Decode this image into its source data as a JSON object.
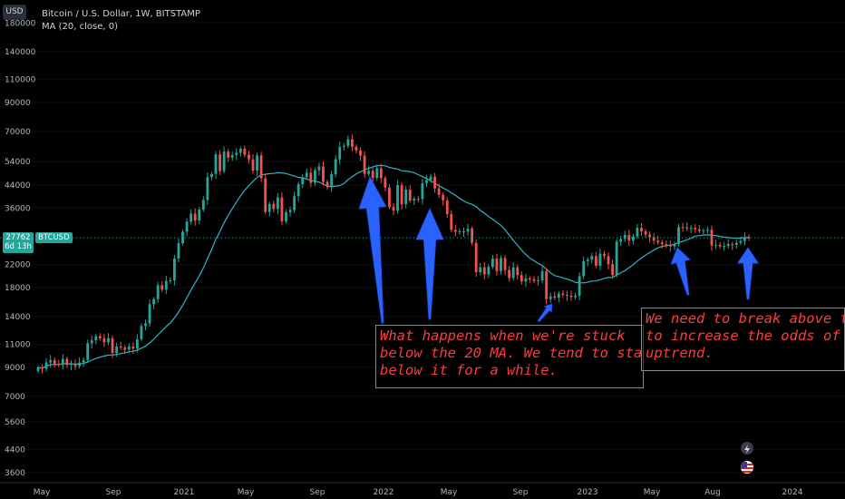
{
  "header": {
    "title": "Bitcoin / U.S. Dollar, 1W, BITSTAMP",
    "indicator": "MA (20, close, 0)",
    "currency_button": "USD"
  },
  "price_tag": {
    "value": "27762",
    "countdown": "6d 13h",
    "symbol": "BTCUSD",
    "color": "#26a69a"
  },
  "colors": {
    "up": "#26a69a",
    "down": "#ef5350",
    "ma": "#2fb6c8",
    "arrow": "#2962ff",
    "note_text": "#ff3b3b"
  },
  "annotations": [
    {
      "id": "note1",
      "text": "What happens when we're stuck\nbelow the 20 MA. We tend to stay\nbelow it for a while."
    },
    {
      "id": "note2",
      "text": "We need to break above th\nto increase the odds of an\nuptrend."
    }
  ],
  "icons": [
    "lightning-icon",
    "us-flag-icon"
  ],
  "chart_data": {
    "type": "candlestick",
    "title": "Bitcoin / U.S. Dollar, 1W, BITSTAMP",
    "scale": "log",
    "ylim": [
      3300,
      200000
    ],
    "y_ticks": [
      3600,
      4400,
      5600,
      7000,
      9000,
      11000,
      14000,
      18000,
      22000,
      28000,
      36000,
      44000,
      54000,
      70000,
      90000,
      110000,
      140000,
      180000
    ],
    "x_ticks": [
      "May",
      "Sep",
      "2021",
      "May",
      "Sep",
      "2022",
      "May",
      "Sep",
      "2023",
      "May",
      "Aug",
      "2024"
    ],
    "current_price": 27762,
    "ma": {
      "name": "MA (20, close, 0)",
      "period": 20
    },
    "closes": [
      9000,
      8900,
      9400,
      9600,
      9300,
      9200,
      9700,
      9200,
      9300,
      9100,
      9400,
      9600,
      11100,
      11400,
      11800,
      11600,
      11200,
      11600,
      10200,
      10800,
      10700,
      10500,
      10800,
      10600,
      11500,
      12900,
      13200,
      15600,
      16300,
      18400,
      17700,
      19100,
      19200,
      23200,
      26500,
      29300,
      32000,
      34300,
      32300,
      35500,
      38600,
      47100,
      48400,
      57400,
      49600,
      58800,
      55800,
      57100,
      58200,
      60300,
      57200,
      55000,
      49800,
      56900,
      46600,
      34800,
      37300,
      35700,
      39500,
      32100,
      34700,
      35400,
      39900,
      44300,
      47100,
      48900,
      44800,
      50000,
      51700,
      45200,
      43100,
      48300,
      55000,
      61300,
      61800,
      65500,
      61300,
      59400,
      56800,
      48400,
      49800,
      46800,
      50800,
      46700,
      43000,
      36300,
      35200,
      43900,
      37200,
      42200,
      38400,
      39000,
      38900,
      44700,
      45900,
      47300,
      42700,
      40400,
      38500,
      34100,
      29800,
      29300,
      29400,
      29300,
      30100,
      26600,
      20600,
      21500,
      20200,
      21600,
      23200,
      20800,
      23300,
      21000,
      19600,
      21500,
      20100,
      19000,
      19500,
      19400,
      19100,
      19200,
      20800,
      16300,
      16700,
      16500,
      17100,
      16900,
      16800,
      16600,
      16800,
      19900,
      22700,
      23000,
      23700,
      21800,
      24200,
      23700,
      22100,
      20100,
      26900,
      27500,
      28500,
      27100,
      28100,
      30300,
      29400,
      28600,
      27900,
      27100,
      26700,
      26300,
      26100,
      25800,
      26300,
      30500,
      30400,
      30200,
      30300,
      29900,
      29500,
      29600,
      29800,
      26000,
      26100,
      25800,
      25900,
      26300,
      26100,
      26600,
      27000,
      27900,
      27762
    ],
    "arrows": [
      {
        "from": [
          9.5,
          14000
        ],
        "to": [
          9.5,
          45000
        ]
      },
      {
        "from": [
          9.5,
          14000
        ],
        "to": [
          9.5,
          38000
        ]
      },
      {
        "from": [
          9.5,
          14800
        ],
        "to": [
          9.5,
          16000
        ]
      },
      {
        "from": [
          9.5,
          16600
        ],
        "to": [
          9.5,
          26000
        ]
      },
      {
        "from": [
          9.5,
          15600
        ],
        "to": [
          9.5,
          27000
        ]
      }
    ]
  }
}
